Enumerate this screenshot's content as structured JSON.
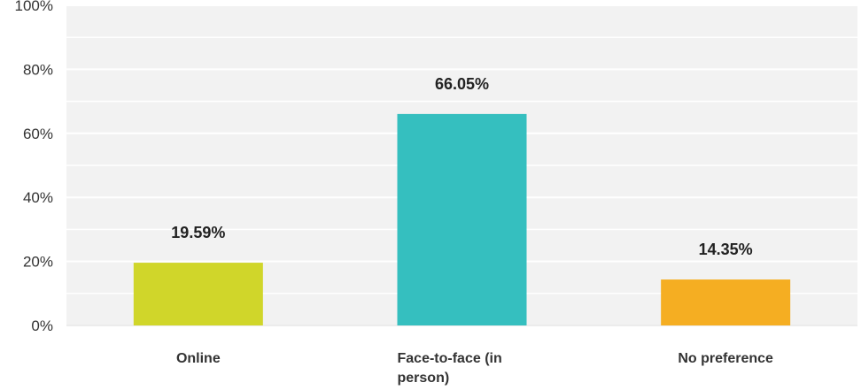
{
  "chart_data": {
    "type": "bar",
    "categories": [
      "Online",
      "Face-to-face (in person)",
      "No preference"
    ],
    "category_label_lines": [
      [
        "Online"
      ],
      [
        "Face-to-face (in",
        "person)"
      ],
      [
        "No preference"
      ]
    ],
    "values": [
      19.59,
      66.05,
      14.35
    ],
    "value_labels": [
      "19.59%",
      "66.05%",
      "14.35%"
    ],
    "colors": [
      "#d0d62a",
      "#35bfbf",
      "#f5ae22"
    ],
    "ylim": [
      0,
      100
    ],
    "y_ticks": [
      0,
      20,
      40,
      60,
      80,
      100
    ],
    "y_tick_labels": [
      "0%",
      "20%",
      "40%",
      "60%",
      "80%",
      "100%"
    ],
    "grid": true,
    "title": "",
    "xlabel": "",
    "ylabel": ""
  }
}
